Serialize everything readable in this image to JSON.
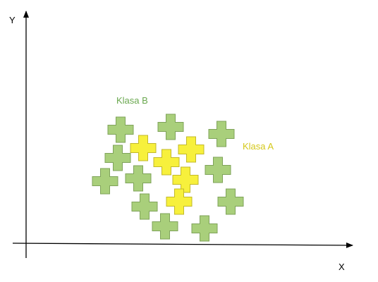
{
  "axes": {
    "x_label": "X",
    "y_label": "Y"
  },
  "classes": {
    "a": {
      "label": "Klasa A",
      "color": "#d4c81a",
      "fill": "#f7f03c",
      "stroke": "#c2b92a"
    },
    "b": {
      "label": "Klasa B",
      "color": "#6aa84f",
      "fill": "#a9cf7b",
      "stroke": "#7fa35a"
    }
  },
  "colors": {
    "axis": "#000000",
    "background": "#ffffff"
  }
}
